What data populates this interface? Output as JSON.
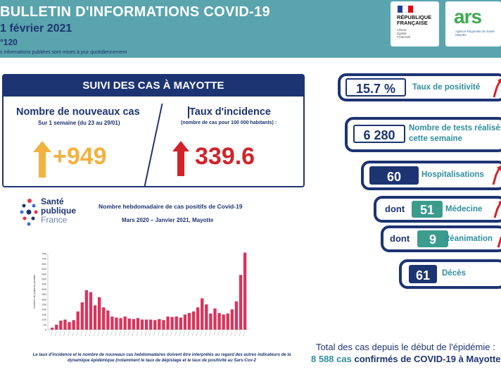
{
  "header": {
    "title": "BULLETIN D'INFORMATIONS COVID-19",
    "date": "1 février 2021",
    "number": "°120",
    "note": "s informations publiées sont mises à jour quotidiennement"
  },
  "logos": {
    "republique": [
      "RÉPUBLIQUE",
      "FRANÇAISE"
    ],
    "republique_motto": [
      "Liberté",
      "Égalité",
      "Fraternité"
    ],
    "ars_mark": "ars",
    "ars_sub": [
      "Agence Régionale de Santé",
      "Mayotte"
    ]
  },
  "cases": {
    "header": "SUIVI DES CAS À MAYOTTE",
    "new_cases_label": "Nombre de nouveaux cas",
    "new_cases_period": "Sur 1 semaine (du 23 au 29/01)",
    "new_cases_value": "+949",
    "incidence_label": "Taux d'incidence",
    "incidence_sub": "(nombre de cas pour 100 000 habitants) :",
    "incidence_value": "339.6",
    "colors": {
      "new_cases": "#f3b13f",
      "incidence": "#d2232a"
    }
  },
  "spf_logo": [
    "Santé",
    "publique",
    "France"
  ],
  "chart": {
    "title": "Nombre hebdomadaire de cas positifs de Covid-19",
    "subtitle": "Mars 2020 – Janvier 2021, Mayotte",
    "footnote": "Le taux d'incidence et le nombre de nouveaux cas hebdomadaires doivent être interprétés au regard des autres indicateurs de la dynamique épidémique (notamment le taux de dépistage et le taux de positivité au Sars-Cov-2"
  },
  "chart_data": {
    "type": "bar",
    "ylabel": "Nombre de patients positifs",
    "ylim": [
      0,
      750
    ],
    "yticks": [
      0,
      50,
      100,
      150,
      200,
      250,
      300,
      350,
      400,
      450,
      500,
      550,
      600,
      650,
      700,
      750
    ],
    "bar_color": "#d9345d",
    "values": [
      20,
      50,
      90,
      100,
      75,
      95,
      180,
      270,
      390,
      370,
      240,
      320,
      220,
      190,
      130,
      120,
      115,
      130,
      110,
      105,
      115,
      100,
      100,
      100,
      95,
      105,
      95,
      130,
      125,
      130,
      120,
      150,
      165,
      180,
      220,
      310,
      250,
      160,
      210,
      165,
      150,
      160,
      200,
      280,
      540,
      760
    ]
  },
  "indicators": {
    "positivity": {
      "value": "15.7 %",
      "label": "Taux de positivité"
    },
    "tests": {
      "value": "6 280",
      "label_line1": "Nombre de tests réalisés",
      "label_line2": "cette semaine"
    },
    "hospitalisations": {
      "value": "60",
      "label": "Hospitalisations"
    },
    "medecine": {
      "prefix": "dont",
      "value": "51",
      "label": "Médecine"
    },
    "reanimation": {
      "prefix": "dont",
      "value": "9",
      "label": "Réanimation"
    },
    "deces": {
      "value": "61",
      "label": "Décès"
    },
    "arrow_color": "#d2232a"
  },
  "totals": {
    "line1": "Total des cas depuis le début de l'épidémie :",
    "cases_number": "8 588 cas",
    "line2_mid": "confirmés de COVID-19 à",
    "place": "Mayotte"
  }
}
